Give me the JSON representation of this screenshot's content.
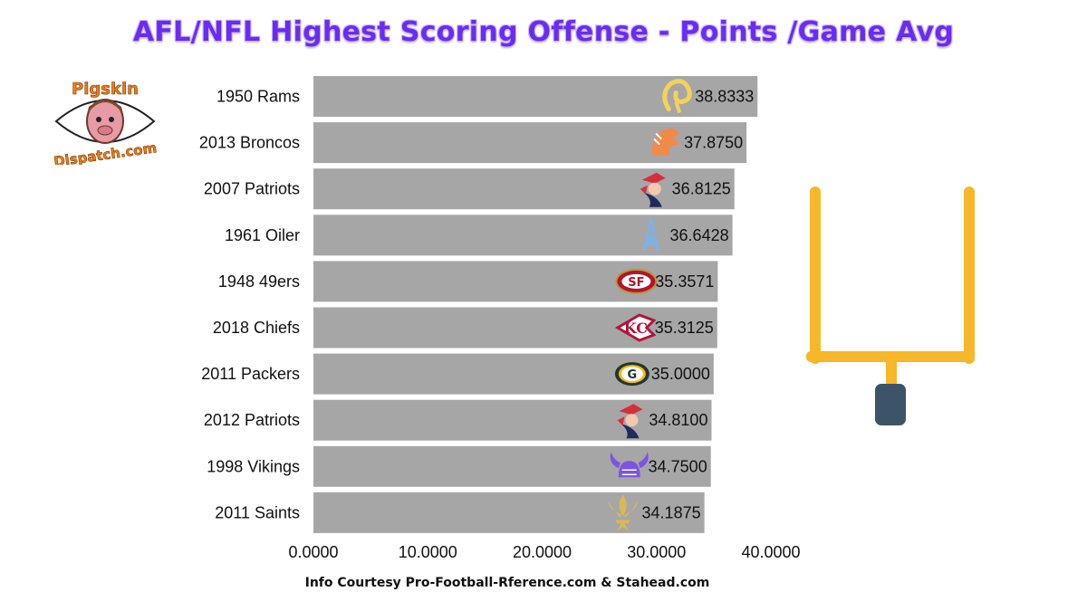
{
  "page": {
    "title": "AFL/NFL Highest Scoring Offense - Points /Game Avg",
    "credit": "Info Courtesy Pro-Football-Rference.com & Stahead.com",
    "logo_top": "Pigskin",
    "logo_bottom": "Dispatch.com"
  },
  "colors": {
    "title": "#6a2cf0",
    "bar": "#a6a6a6",
    "goalpost": "#f7b728",
    "goalpost_base": "#3d5468",
    "logo_text": "#f07c1c"
  },
  "chart_data": {
    "type": "bar",
    "orientation": "horizontal",
    "categories": [
      "1950 Rams",
      "2013 Broncos",
      "2007 Patriots",
      "1961 Oiler",
      "1948 49ers",
      "2018 Chiefs",
      "2011 Packers",
      "2012 Patriots",
      "1998 Vikings",
      "2011 Saints"
    ],
    "values": [
      38.8333,
      37.875,
      36.8125,
      36.6428,
      35.3571,
      35.3125,
      35.0,
      34.81,
      34.75,
      34.1875
    ],
    "labels": [
      "38.8333",
      "37.8750",
      "36.8125",
      "36.6428",
      "35.3571",
      "35.3125",
      "35.0000",
      "34.8100",
      "34.7500",
      "34.1875"
    ],
    "icons": [
      "rams-horn-icon",
      "broncos-horse-icon",
      "patriots-minuteman-icon",
      "oilers-derrick-icon",
      "49ers-oval-icon",
      "chiefs-arrowhead-icon",
      "packers-g-icon",
      "patriots-minuteman-icon",
      "vikings-horn-icon",
      "fleur-de-lis-icon"
    ],
    "icon_colors": [
      "#f4d25a",
      "#f08a4b",
      "#d5303a",
      "#7ab3ea",
      "#b3152a",
      "#b0163a",
      "#203731",
      "#d5303a",
      "#7b55e0",
      "#d9b75a"
    ],
    "xticks": [
      "0.0000",
      "10.0000",
      "20.0000",
      "30.0000",
      "40.0000"
    ],
    "xlim": [
      0,
      40
    ],
    "grid": false,
    "legend": "none"
  }
}
